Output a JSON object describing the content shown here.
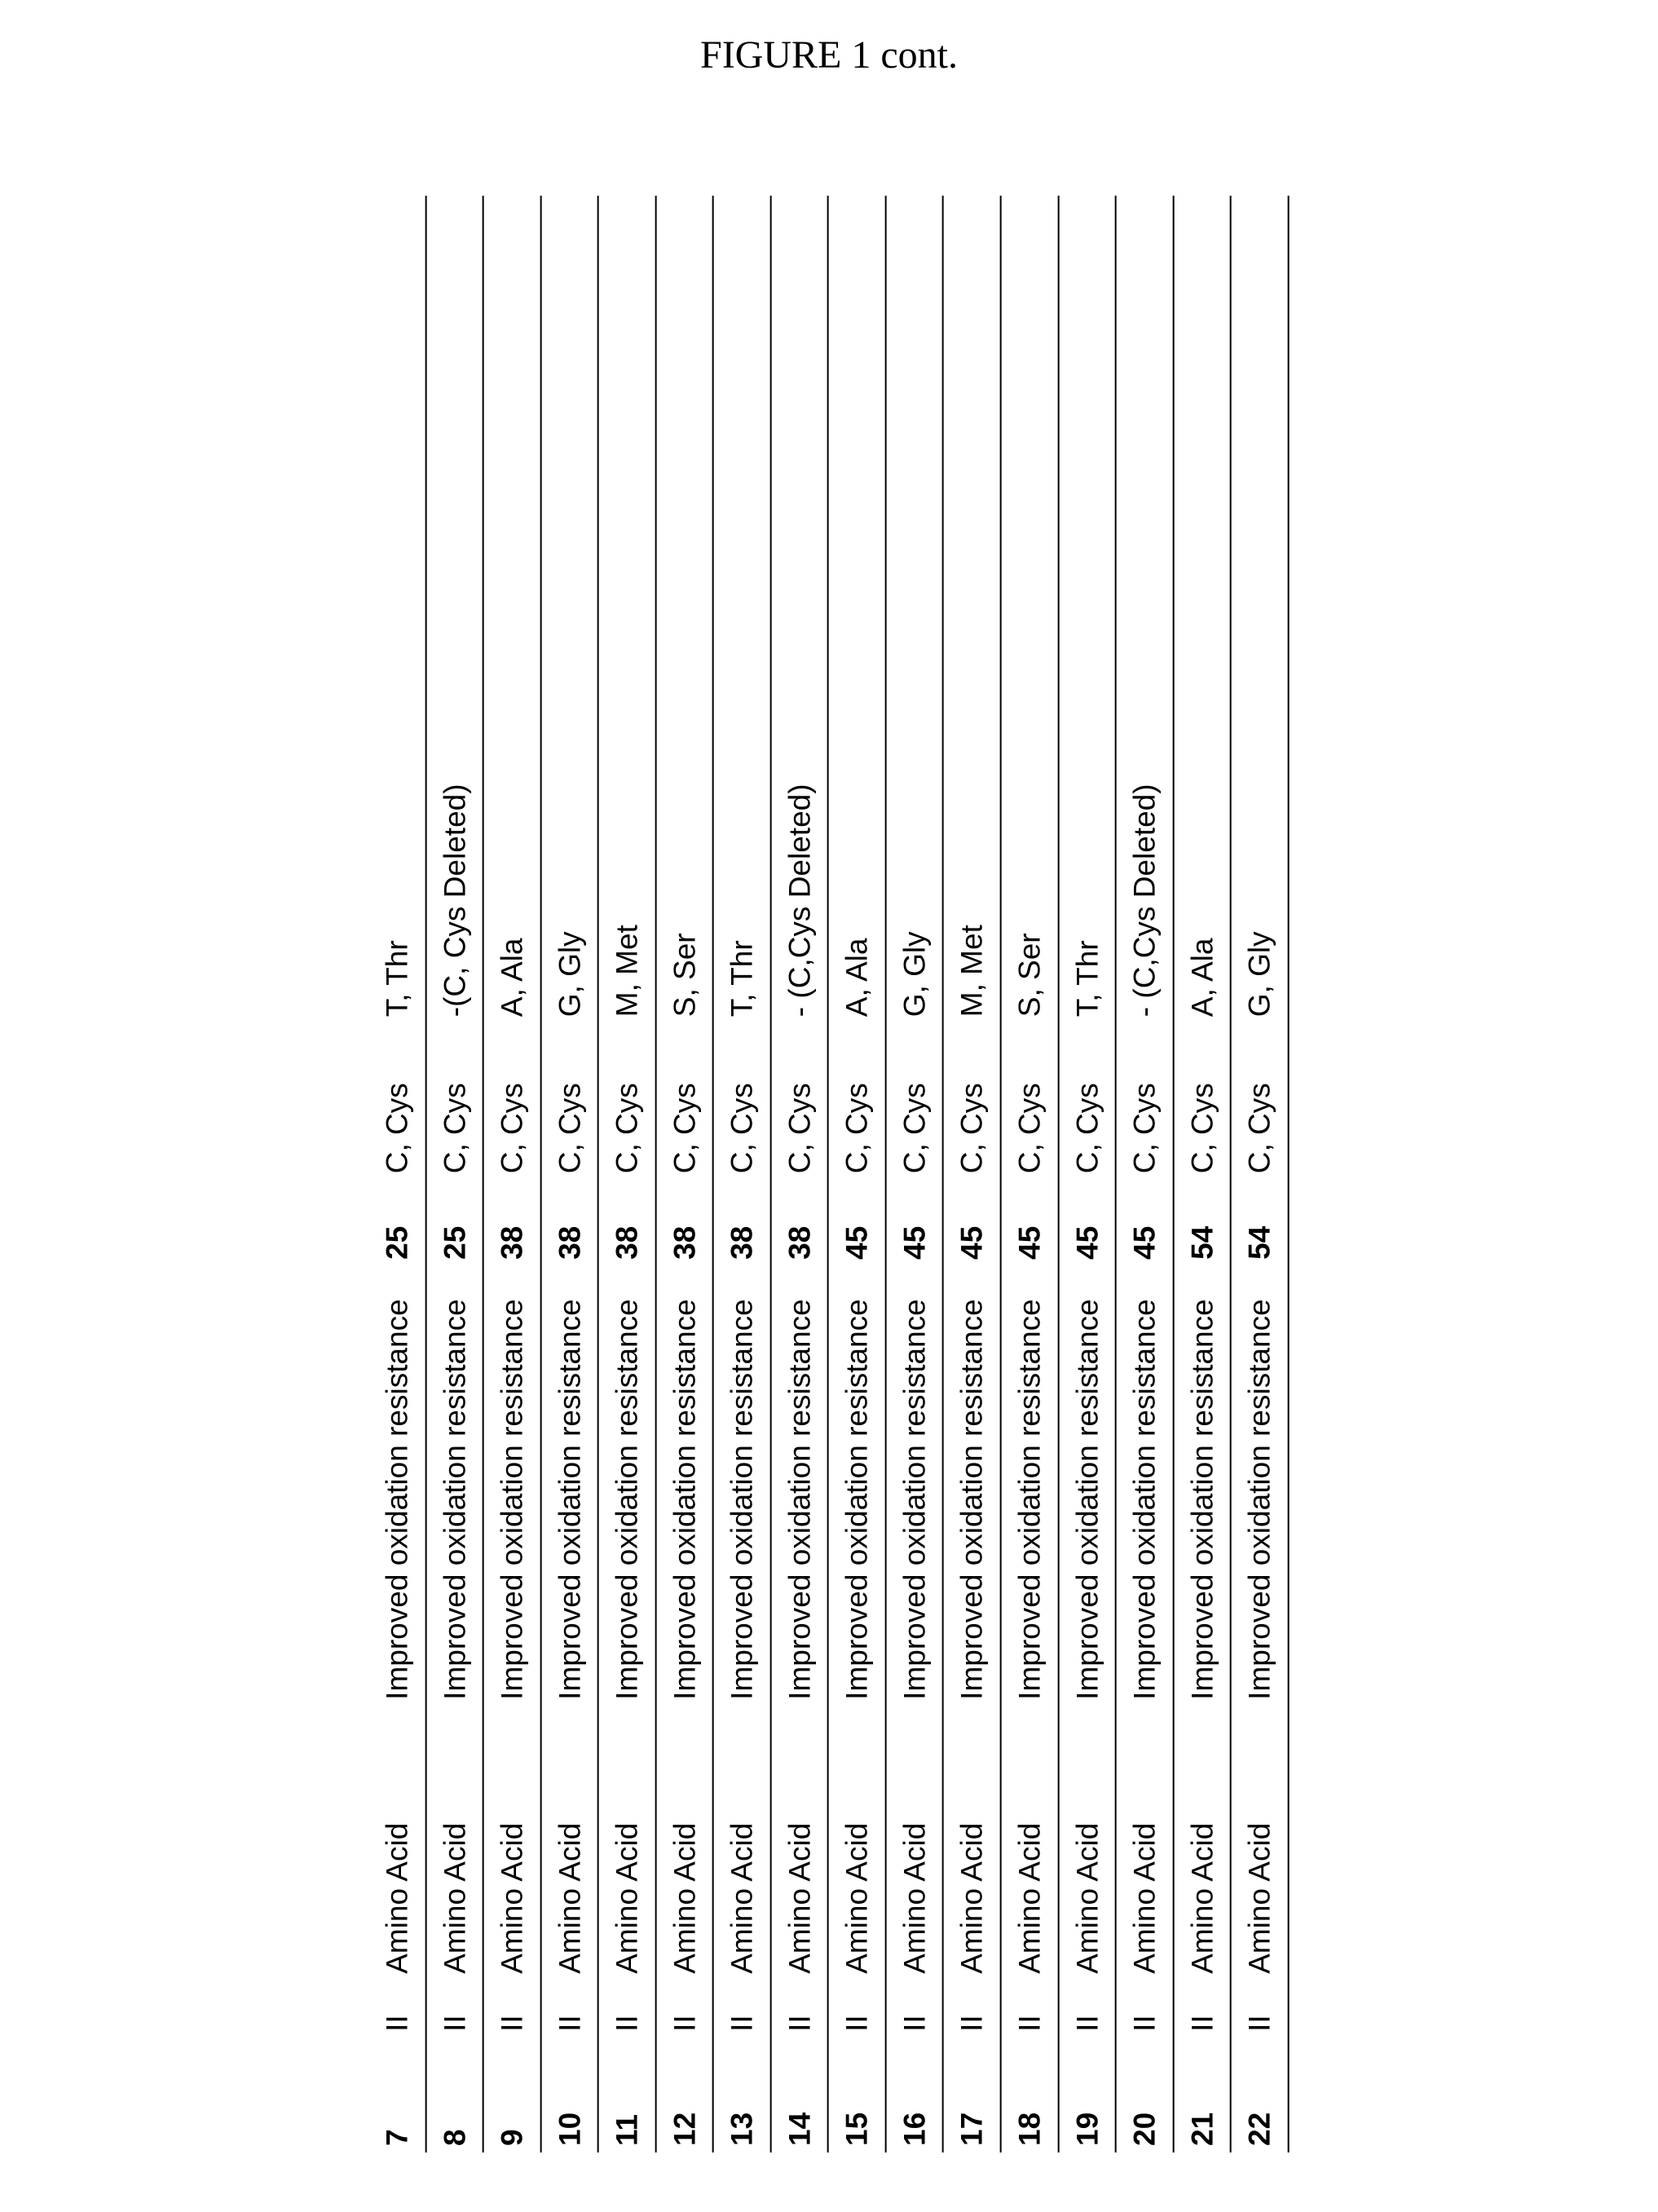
{
  "caption": "FIGURE 1 cont.",
  "table": {
    "font_size_pt": 28,
    "border_color": "#000000",
    "rows": [
      {
        "n": "7",
        "r": "II",
        "t": "Amino Acid",
        "d": "Improved oxidation resistance",
        "p": "25",
        "o": "C, Cys",
        "s": "T, Thr"
      },
      {
        "n": "8",
        "r": "II",
        "t": "Amino Acid",
        "d": "Improved oxidation resistance",
        "p": "25",
        "o": "C, Cys",
        "s": "-(C, Cys Deleted)"
      },
      {
        "n": "9",
        "r": "II",
        "t": "Amino Acid",
        "d": "Improved oxidation resistance",
        "p": "38",
        "o": "C, Cys",
        "s": "A, Ala"
      },
      {
        "n": "10",
        "r": "II",
        "t": "Amino Acid",
        "d": "Improved oxidation resistance",
        "p": "38",
        "o": "C, Cys",
        "s": "G, Gly"
      },
      {
        "n": "11",
        "r": "II",
        "t": "Amino Acid",
        "d": "Improved oxidation resistance",
        "p": "38",
        "o": "C, Cys",
        "s": "M, Met"
      },
      {
        "n": "12",
        "r": "II",
        "t": "Amino Acid",
        "d": "Improved oxidation resistance",
        "p": "38",
        "o": "C, Cys",
        "s": "S, Ser"
      },
      {
        "n": "13",
        "r": "II",
        "t": "Amino Acid",
        "d": "Improved oxidation resistance",
        "p": "38",
        "o": "C, Cys",
        "s": "T, Thr"
      },
      {
        "n": "14",
        "r": "II",
        "t": "Amino Acid",
        "d": "Improved oxidation resistance",
        "p": "38",
        "o": "C, Cys",
        "s": "- (C,Cys Deleted)"
      },
      {
        "n": "15",
        "r": "II",
        "t": "Amino Acid",
        "d": "Improved oxidation resistance",
        "p": "45",
        "o": "C, Cys",
        "s": "A, Ala"
      },
      {
        "n": "16",
        "r": "II",
        "t": "Amino Acid",
        "d": "Improved oxidation resistance",
        "p": "45",
        "o": "C, Cys",
        "s": "G, Gly"
      },
      {
        "n": "17",
        "r": "II",
        "t": "Amino Acid",
        "d": "Improved oxidation resistance",
        "p": "45",
        "o": "C, Cys",
        "s": "M, Met"
      },
      {
        "n": "18",
        "r": "II",
        "t": "Amino Acid",
        "d": "Improved oxidation resistance",
        "p": "45",
        "o": "C, Cys",
        "s": "S, Ser"
      },
      {
        "n": "19",
        "r": "II",
        "t": "Amino Acid",
        "d": "Improved oxidation resistance",
        "p": "45",
        "o": "C, Cys",
        "s": "T, Thr"
      },
      {
        "n": "20",
        "r": "II",
        "t": "Amino Acid",
        "d": "Improved oxidation resistance",
        "p": "45",
        "o": "C, Cys",
        "s": "- (C,Cys Deleted)"
      },
      {
        "n": "21",
        "r": "II",
        "t": "Amino Acid",
        "d": "Improved oxidation resistance",
        "p": "54",
        "o": "C, Cys",
        "s": "A, Ala"
      },
      {
        "n": "22",
        "r": "II",
        "t": "Amino Acid",
        "d": "Improved oxidation resistance",
        "p": "54",
        "o": "C, Cys",
        "s": "G, Gly"
      }
    ]
  }
}
